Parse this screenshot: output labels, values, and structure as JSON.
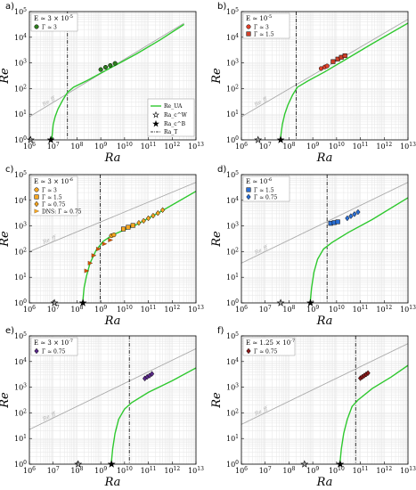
{
  "chart_data": [
    {
      "type": "line",
      "label": "a)",
      "xlabel": "Ra",
      "ylabel": "Re",
      "x_ticks": [
        "10^6",
        "10^7",
        "10^8",
        "10^9",
        "10^10",
        "10^11",
        "10^12",
        "10^13"
      ],
      "y_ticks": [
        "10^0",
        "10^1",
        "10^2",
        "10^3",
        "10^4",
        "10^5"
      ],
      "xlim_log10": [
        6,
        13
      ],
      "ylim_log10": [
        0,
        5
      ],
      "legend_title": "E ≃ 3 × 10^-5",
      "legend_entries": [
        {
          "label": "Γ ≃ 3",
          "marker": "circle",
          "color": "#2e7d1e"
        }
      ],
      "has_curve_legend": true,
      "curve_legend": {
        "rela": "Re_UA",
        "star_open": "Ra_c^W",
        "star_filled": "Ra_c^B",
        "dashdot": "Ra_T"
      },
      "free_fall_label": "Re_ff",
      "free_fall_line_log10": [
        [
          6,
          0.9
        ],
        [
          12.5,
          4.55
        ]
      ],
      "ra_c_wall_log10": 6.05,
      "ra_c_bulk_log10": 6.9,
      "ra_t_log10": 7.6,
      "curve_log10": [
        [
          6.95,
          0
        ],
        [
          6.95,
          0.12
        ],
        [
          7.0,
          0.6
        ],
        [
          7.08,
          0.9
        ],
        [
          7.2,
          1.2
        ],
        [
          7.4,
          1.55
        ],
        [
          7.6,
          1.85
        ],
        [
          7.85,
          2.05
        ],
        [
          8.5,
          2.35
        ],
        [
          9.5,
          2.85
        ],
        [
          10.5,
          3.35
        ],
        [
          11.5,
          3.9
        ],
        [
          12.5,
          4.5
        ]
      ],
      "series": [
        {
          "name": "Γ ≃ 3",
          "marker": "circle",
          "color": "#2e7d1e",
          "points_log10": [
            [
              9.0,
              2.74
            ],
            [
              9.2,
              2.83
            ],
            [
              9.4,
              2.9
            ],
            [
              9.6,
              2.98
            ]
          ]
        }
      ]
    },
    {
      "type": "line",
      "label": "b)",
      "xlabel": "Ra",
      "ylabel": "Re",
      "x_ticks": [
        "10^6",
        "10^7",
        "10^8",
        "10^9",
        "10^10",
        "10^11",
        "10^12",
        "10^13"
      ],
      "y_ticks": [
        "10^0",
        "10^1",
        "10^2",
        "10^3",
        "10^4",
        "10^5"
      ],
      "xlim_log10": [
        6,
        13
      ],
      "ylim_log10": [
        0,
        5
      ],
      "legend_title": "E ≃ 10^-5",
      "legend_entries": [
        {
          "label": "Γ ≃ 3",
          "marker": "circle",
          "color": "#e0402a"
        },
        {
          "label": "Γ ≃ 1.5",
          "marker": "square",
          "color": "#d0402a"
        }
      ],
      "has_curve_legend": false,
      "free_fall_label": "Re_ff",
      "free_fall_line_log10": [
        [
          6,
          0.9
        ],
        [
          13,
          4.7
        ]
      ],
      "ra_c_wall_log10": 6.7,
      "ra_c_bulk_log10": 7.65,
      "ra_t_log10": 8.3,
      "curve_log10": [
        [
          7.65,
          0
        ],
        [
          7.65,
          0.12
        ],
        [
          7.72,
          0.6
        ],
        [
          7.82,
          1.0
        ],
        [
          7.95,
          1.35
        ],
        [
          8.15,
          1.75
        ],
        [
          8.35,
          2.05
        ],
        [
          8.8,
          2.3
        ],
        [
          9.5,
          2.65
        ],
        [
          10.5,
          3.2
        ],
        [
          11.5,
          3.75
        ],
        [
          13,
          4.55
        ]
      ],
      "series": [
        {
          "name": "Γ ≃ 3",
          "marker": "circle",
          "color": "#e0402a",
          "points_log10": [
            [
              9.35,
              2.78
            ],
            [
              9.5,
              2.84
            ],
            [
              9.6,
              2.88
            ]
          ]
        },
        {
          "name": "Γ ≃ 1.5",
          "marker": "square",
          "color": "#d0402a",
          "points_log10": [
            [
              9.85,
              3.05
            ],
            [
              10.05,
              3.15
            ],
            [
              10.2,
              3.22
            ],
            [
              10.35,
              3.28
            ]
          ]
        }
      ]
    },
    {
      "type": "line",
      "label": "c)",
      "xlabel": "Ra",
      "ylabel": "Re",
      "x_ticks": [
        "10^6",
        "10^7",
        "10^8",
        "10^9",
        "10^10",
        "10^11",
        "10^12",
        "10^13"
      ],
      "y_ticks": [
        "10^0",
        "10^1",
        "10^2",
        "10^3",
        "10^4",
        "10^5"
      ],
      "xlim_log10": [
        6,
        13
      ],
      "ylim_log10": [
        0,
        5
      ],
      "legend_title": "E ≃ 3 × 10^-6",
      "legend_entries": [
        {
          "label": "Γ ≃ 3",
          "marker": "circle",
          "color": "#f5a623"
        },
        {
          "label": "Γ ≃ 1.5",
          "marker": "square",
          "color": "#f5a623"
        },
        {
          "label": "Γ ≃ 0.75",
          "marker": "diamond",
          "color": "#f5a623"
        },
        {
          "label": "DNS: Γ ≃ 0.75",
          "marker": "triangle",
          "color": "#f5a623"
        }
      ],
      "has_curve_legend": false,
      "free_fall_label": "Re_ff",
      "free_fall_line_log10": [
        [
          6,
          2.0
        ],
        [
          13,
          4.7
        ]
      ],
      "ra_c_wall_log10": 7.05,
      "ra_c_bulk_log10": 8.25,
      "ra_t_log10": 8.98,
      "curve_log10": [
        [
          8.25,
          0
        ],
        [
          8.25,
          0.12
        ],
        [
          8.3,
          0.6
        ],
        [
          8.4,
          1.05
        ],
        [
          8.55,
          1.55
        ],
        [
          8.8,
          2.05
        ],
        [
          9.1,
          2.4
        ],
        [
          9.5,
          2.65
        ],
        [
          10.5,
          3.05
        ],
        [
          11.5,
          3.55
        ],
        [
          13,
          4.35
        ]
      ],
      "series": [
        {
          "name": "Γ ≃ 3",
          "marker": "circle",
          "color": "#f5a623",
          "points_log10": [
            [
              9.45,
              2.62
            ],
            [
              9.55,
              2.65
            ]
          ]
        },
        {
          "name": "Γ ≃ 1.5",
          "marker": "square",
          "color": "#f5a623",
          "points_log10": [
            [
              9.95,
              2.88
            ],
            [
              10.15,
              2.95
            ],
            [
              10.35,
              3.02
            ]
          ]
        },
        {
          "name": "Γ ≃ 0.75",
          "marker": "diamond",
          "color": "#f5a623",
          "points_log10": [
            [
              10.6,
              3.12
            ],
            [
              10.8,
              3.2
            ],
            [
              11.0,
              3.3
            ],
            [
              11.2,
              3.4
            ],
            [
              11.4,
              3.5
            ],
            [
              11.6,
              3.62
            ]
          ]
        },
        {
          "name": "DNS: Γ ≃ 0.75",
          "marker": "triangle",
          "color": "#d35400",
          "points_log10": [
            [
              8.4,
              1.25
            ],
            [
              8.55,
              1.55
            ],
            [
              8.7,
              1.85
            ],
            [
              8.9,
              2.1
            ],
            [
              9.15,
              2.3
            ],
            [
              9.4,
              2.45
            ]
          ]
        }
      ]
    },
    {
      "type": "line",
      "label": "d)",
      "xlabel": "Ra",
      "ylabel": "Re",
      "x_ticks": [
        "10^6",
        "10^7",
        "10^8",
        "10^9",
        "10^10",
        "10^11",
        "10^12",
        "10^13"
      ],
      "y_ticks": [
        "10^0",
        "10^1",
        "10^2",
        "10^3",
        "10^4",
        "10^5"
      ],
      "xlim_log10": [
        6,
        13
      ],
      "ylim_log10": [
        0,
        5
      ],
      "legend_title": "E ≃ 10^-6",
      "legend_entries": [
        {
          "label": "Γ ≃ 1.5",
          "marker": "square",
          "color": "#2a6fd6"
        },
        {
          "label": "Γ ≃ 0.75",
          "marker": "diamond",
          "color": "#2a6fd6"
        }
      ],
      "has_curve_legend": false,
      "free_fall_label": "Re_ff",
      "free_fall_line_log10": [
        [
          6,
          1.55
        ],
        [
          13,
          4.7
        ]
      ],
      "ra_c_wall_log10": 7.65,
      "ra_c_bulk_log10": 8.9,
      "ra_t_log10": 9.6,
      "curve_log10": [
        [
          8.9,
          0
        ],
        [
          8.9,
          0.12
        ],
        [
          8.95,
          0.6
        ],
        [
          9.05,
          1.2
        ],
        [
          9.2,
          1.7
        ],
        [
          9.45,
          2.1
        ],
        [
          9.8,
          2.35
        ],
        [
          10.5,
          2.75
        ],
        [
          11.5,
          3.25
        ],
        [
          13,
          4.1
        ]
      ],
      "series": [
        {
          "name": "Γ ≃ 1.5",
          "marker": "square",
          "color": "#2a6fd6",
          "points_log10": [
            [
              9.75,
              3.1
            ],
            [
              9.9,
              3.13
            ],
            [
              10.05,
              3.16
            ]
          ]
        },
        {
          "name": "Γ ≃ 0.75",
          "marker": "diamond",
          "color": "#2a6fd6",
          "points_log10": [
            [
              10.45,
              3.3
            ],
            [
              10.6,
              3.38
            ],
            [
              10.75,
              3.46
            ],
            [
              10.9,
              3.54
            ]
          ]
        }
      ]
    },
    {
      "type": "line",
      "label": "e)",
      "xlabel": "Ra",
      "ylabel": "Re",
      "x_ticks": [
        "10^6",
        "10^7",
        "10^8",
        "10^9",
        "10^10",
        "10^11",
        "10^12",
        "10^13"
      ],
      "y_ticks": [
        "10^0",
        "10^1",
        "10^2",
        "10^3",
        "10^4",
        "10^5"
      ],
      "xlim_log10": [
        6,
        13
      ],
      "ylim_log10": [
        0,
        5
      ],
      "legend_title": "E ≃ 3 × 10^-7",
      "legend_entries": [
        {
          "label": "Γ ≃ 0.75",
          "marker": "diamond",
          "color": "#5a2a8a"
        }
      ],
      "has_curve_legend": false,
      "free_fall_label": "Re_ff",
      "free_fall_line_log10": [
        [
          6,
          1.35
        ],
        [
          13,
          4.5
        ]
      ],
      "ra_c_wall_log10": 8.05,
      "ra_c_bulk_log10": 9.45,
      "ra_t_log10": 10.2,
      "curve_log10": [
        [
          9.45,
          0
        ],
        [
          9.45,
          0.12
        ],
        [
          9.5,
          0.6
        ],
        [
          9.6,
          1.2
        ],
        [
          9.75,
          1.75
        ],
        [
          10.0,
          2.15
        ],
        [
          10.3,
          2.4
        ],
        [
          11.0,
          2.8
        ],
        [
          12.0,
          3.25
        ],
        [
          13,
          3.75
        ]
      ],
      "series": [
        {
          "name": "Γ ≃ 0.75",
          "marker": "diamond",
          "color": "#5a2a8a",
          "points_log10": [
            [
              10.85,
              3.34
            ],
            [
              10.95,
              3.4
            ],
            [
              11.05,
              3.45
            ],
            [
              11.15,
              3.52
            ]
          ]
        }
      ]
    },
    {
      "type": "line",
      "label": "f)",
      "xlabel": "Ra",
      "ylabel": "Re",
      "x_ticks": [
        "10^6",
        "10^7",
        "10^8",
        "10^9",
        "10^10",
        "10^11",
        "10^12",
        "10^13"
      ],
      "y_ticks": [
        "10^0",
        "10^1",
        "10^2",
        "10^3",
        "10^4",
        "10^5"
      ],
      "xlim_log10": [
        6,
        13
      ],
      "ylim_log10": [
        0,
        5
      ],
      "legend_title": "E ≃ 1.25 × 10^-7",
      "legend_entries": [
        {
          "label": "Γ ≃ 0.75",
          "marker": "diamond",
          "color": "#8a1a1a"
        }
      ],
      "has_curve_legend": false,
      "free_fall_label": "Re_ff",
      "free_fall_line_log10": [
        [
          6,
          1.55
        ],
        [
          13,
          4.7
        ]
      ],
      "ra_c_wall_log10": 8.65,
      "ra_c_bulk_log10": 10.15,
      "ra_t_log10": 10.8,
      "curve_log10": [
        [
          10.15,
          0
        ],
        [
          10.15,
          0.12
        ],
        [
          10.2,
          0.6
        ],
        [
          10.3,
          1.2
        ],
        [
          10.45,
          1.75
        ],
        [
          10.65,
          2.25
        ],
        [
          10.9,
          2.5
        ],
        [
          11.5,
          2.95
        ],
        [
          12.3,
          3.4
        ],
        [
          13,
          3.85
        ]
      ],
      "series": [
        {
          "name": "Γ ≃ 0.75",
          "marker": "diamond",
          "color": "#8a1a1a",
          "points_log10": [
            [
              11.0,
              3.35
            ],
            [
              11.08,
              3.4
            ],
            [
              11.16,
              3.45
            ],
            [
              11.24,
              3.5
            ],
            [
              11.32,
              3.55
            ]
          ]
        }
      ]
    }
  ],
  "colors": {
    "curve": "#2ec82e",
    "free_fall": "#aaaaaa",
    "grid": "#e6e6e6",
    "frame": "#000000"
  }
}
